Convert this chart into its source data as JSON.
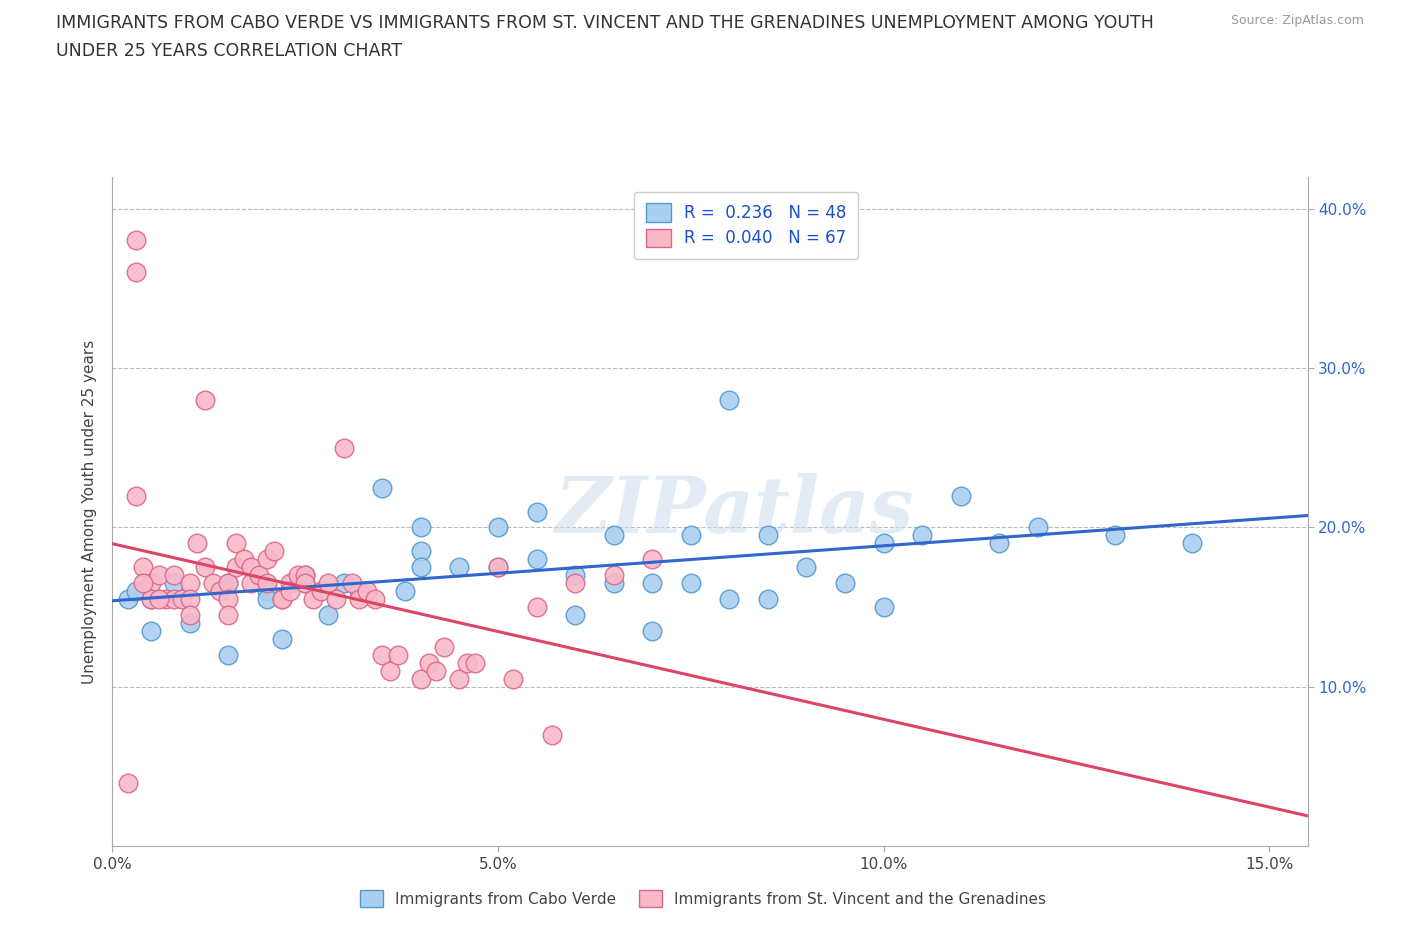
{
  "title_line1": "IMMIGRANTS FROM CABO VERDE VS IMMIGRANTS FROM ST. VINCENT AND THE GRENADINES UNEMPLOYMENT AMONG YOUTH",
  "title_line2": "UNDER 25 YEARS CORRELATION CHART",
  "source": "Source: ZipAtlas.com",
  "ylabel": "Unemployment Among Youth under 25 years",
  "xlim": [
    0.0,
    0.155
  ],
  "ylim": [
    0.0,
    0.42
  ],
  "yticks": [
    0.1,
    0.2,
    0.3,
    0.4
  ],
  "xticks": [
    0.0,
    0.05,
    0.1,
    0.15
  ],
  "xtick_labels": [
    "0.0%",
    "5.0%",
    "10.0%",
    "15.0%"
  ],
  "ytick_labels": [
    "10.0%",
    "20.0%",
    "30.0%",
    "40.0%"
  ],
  "series": [
    {
      "label": "Immigrants from Cabo Verde",
      "color": "#aacff0",
      "edge_color": "#5599cc",
      "R": 0.236,
      "N": 48,
      "line_color": "#3366cc",
      "x": [
        0.005,
        0.01,
        0.015,
        0.015,
        0.02,
        0.02,
        0.022,
        0.025,
        0.025,
        0.028,
        0.03,
        0.032,
        0.035,
        0.038,
        0.04,
        0.04,
        0.04,
        0.045,
        0.05,
        0.05,
        0.055,
        0.055,
        0.06,
        0.06,
        0.065,
        0.065,
        0.07,
        0.07,
        0.075,
        0.075,
        0.08,
        0.08,
        0.085,
        0.085,
        0.09,
        0.095,
        0.1,
        0.1,
        0.105,
        0.11,
        0.115,
        0.12,
        0.13,
        0.14,
        0.002,
        0.003,
        0.005,
        0.008
      ],
      "y": [
        0.135,
        0.14,
        0.12,
        0.165,
        0.16,
        0.155,
        0.13,
        0.17,
        0.165,
        0.145,
        0.165,
        0.16,
        0.225,
        0.16,
        0.2,
        0.185,
        0.175,
        0.175,
        0.175,
        0.2,
        0.18,
        0.21,
        0.145,
        0.17,
        0.195,
        0.165,
        0.135,
        0.165,
        0.165,
        0.195,
        0.155,
        0.28,
        0.155,
        0.195,
        0.175,
        0.165,
        0.15,
        0.19,
        0.195,
        0.22,
        0.19,
        0.2,
        0.195,
        0.19,
        0.155,
        0.16,
        0.155,
        0.165
      ]
    },
    {
      "label": "Immigrants from St. Vincent and the Grenadines",
      "color": "#f8b8c8",
      "edge_color": "#dd6688",
      "R": 0.04,
      "N": 67,
      "line_color": "#dd4466",
      "x": [
        0.003,
        0.003,
        0.004,
        0.005,
        0.005,
        0.006,
        0.007,
        0.008,
        0.008,
        0.009,
        0.01,
        0.01,
        0.01,
        0.011,
        0.012,
        0.012,
        0.013,
        0.014,
        0.015,
        0.015,
        0.015,
        0.016,
        0.016,
        0.017,
        0.018,
        0.018,
        0.019,
        0.02,
        0.02,
        0.021,
        0.022,
        0.022,
        0.023,
        0.023,
        0.024,
        0.025,
        0.025,
        0.026,
        0.027,
        0.028,
        0.029,
        0.03,
        0.031,
        0.032,
        0.033,
        0.034,
        0.035,
        0.036,
        0.037,
        0.04,
        0.041,
        0.042,
        0.043,
        0.045,
        0.046,
        0.047,
        0.05,
        0.052,
        0.055,
        0.057,
        0.06,
        0.065,
        0.07,
        0.003,
        0.004,
        0.006,
        0.002
      ],
      "y": [
        0.38,
        0.36,
        0.175,
        0.165,
        0.155,
        0.17,
        0.155,
        0.17,
        0.155,
        0.155,
        0.165,
        0.155,
        0.145,
        0.19,
        0.28,
        0.175,
        0.165,
        0.16,
        0.165,
        0.155,
        0.145,
        0.19,
        0.175,
        0.18,
        0.175,
        0.165,
        0.17,
        0.18,
        0.165,
        0.185,
        0.155,
        0.155,
        0.165,
        0.16,
        0.17,
        0.17,
        0.165,
        0.155,
        0.16,
        0.165,
        0.155,
        0.25,
        0.165,
        0.155,
        0.16,
        0.155,
        0.12,
        0.11,
        0.12,
        0.105,
        0.115,
        0.11,
        0.125,
        0.105,
        0.115,
        0.115,
        0.175,
        0.105,
        0.15,
        0.07,
        0.165,
        0.17,
        0.18,
        0.22,
        0.165,
        0.155,
        0.04
      ]
    }
  ],
  "watermark": "ZIPatlas",
  "legend_color": "#1a50cc",
  "background_color": "#ffffff",
  "grid_color": "#bbbbbb",
  "title_fontsize": 12.5,
  "axis_label_fontsize": 11,
  "tick_fontsize": 11,
  "right_tick_color": "#3366cc"
}
